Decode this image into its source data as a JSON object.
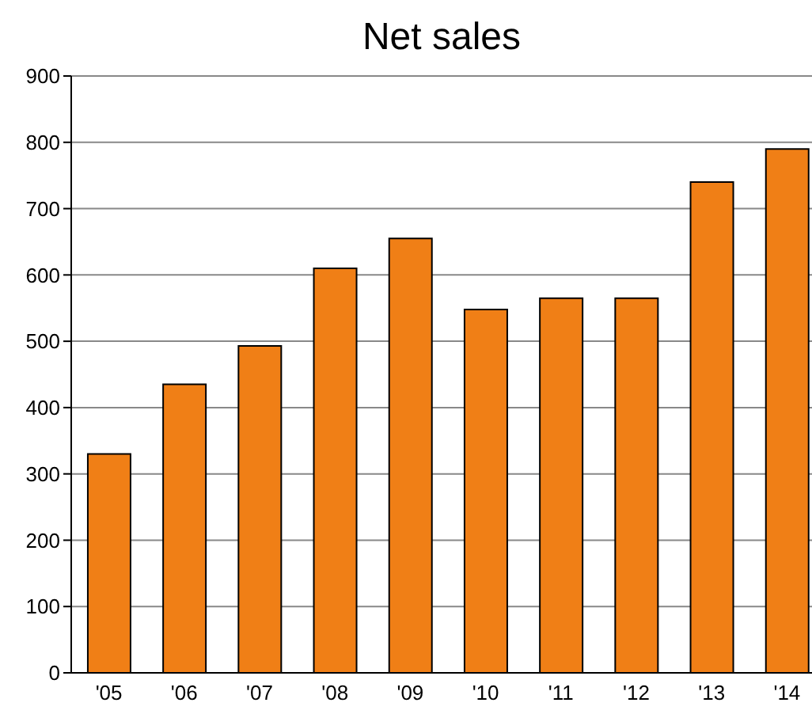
{
  "chart_data": {
    "type": "bar",
    "title": "Net sales",
    "categories": [
      "'05",
      "'06",
      "'07",
      "'08",
      "'09",
      "'10",
      "'11",
      "'12",
      "'13",
      "'14"
    ],
    "values": [
      330,
      435,
      493,
      610,
      655,
      548,
      565,
      565,
      740,
      790
    ],
    "color": "#f07f16",
    "ylim": [
      0,
      900
    ],
    "yticks": [
      0,
      100,
      200,
      300,
      400,
      500,
      600,
      700,
      800,
      900
    ],
    "grid": "y"
  }
}
